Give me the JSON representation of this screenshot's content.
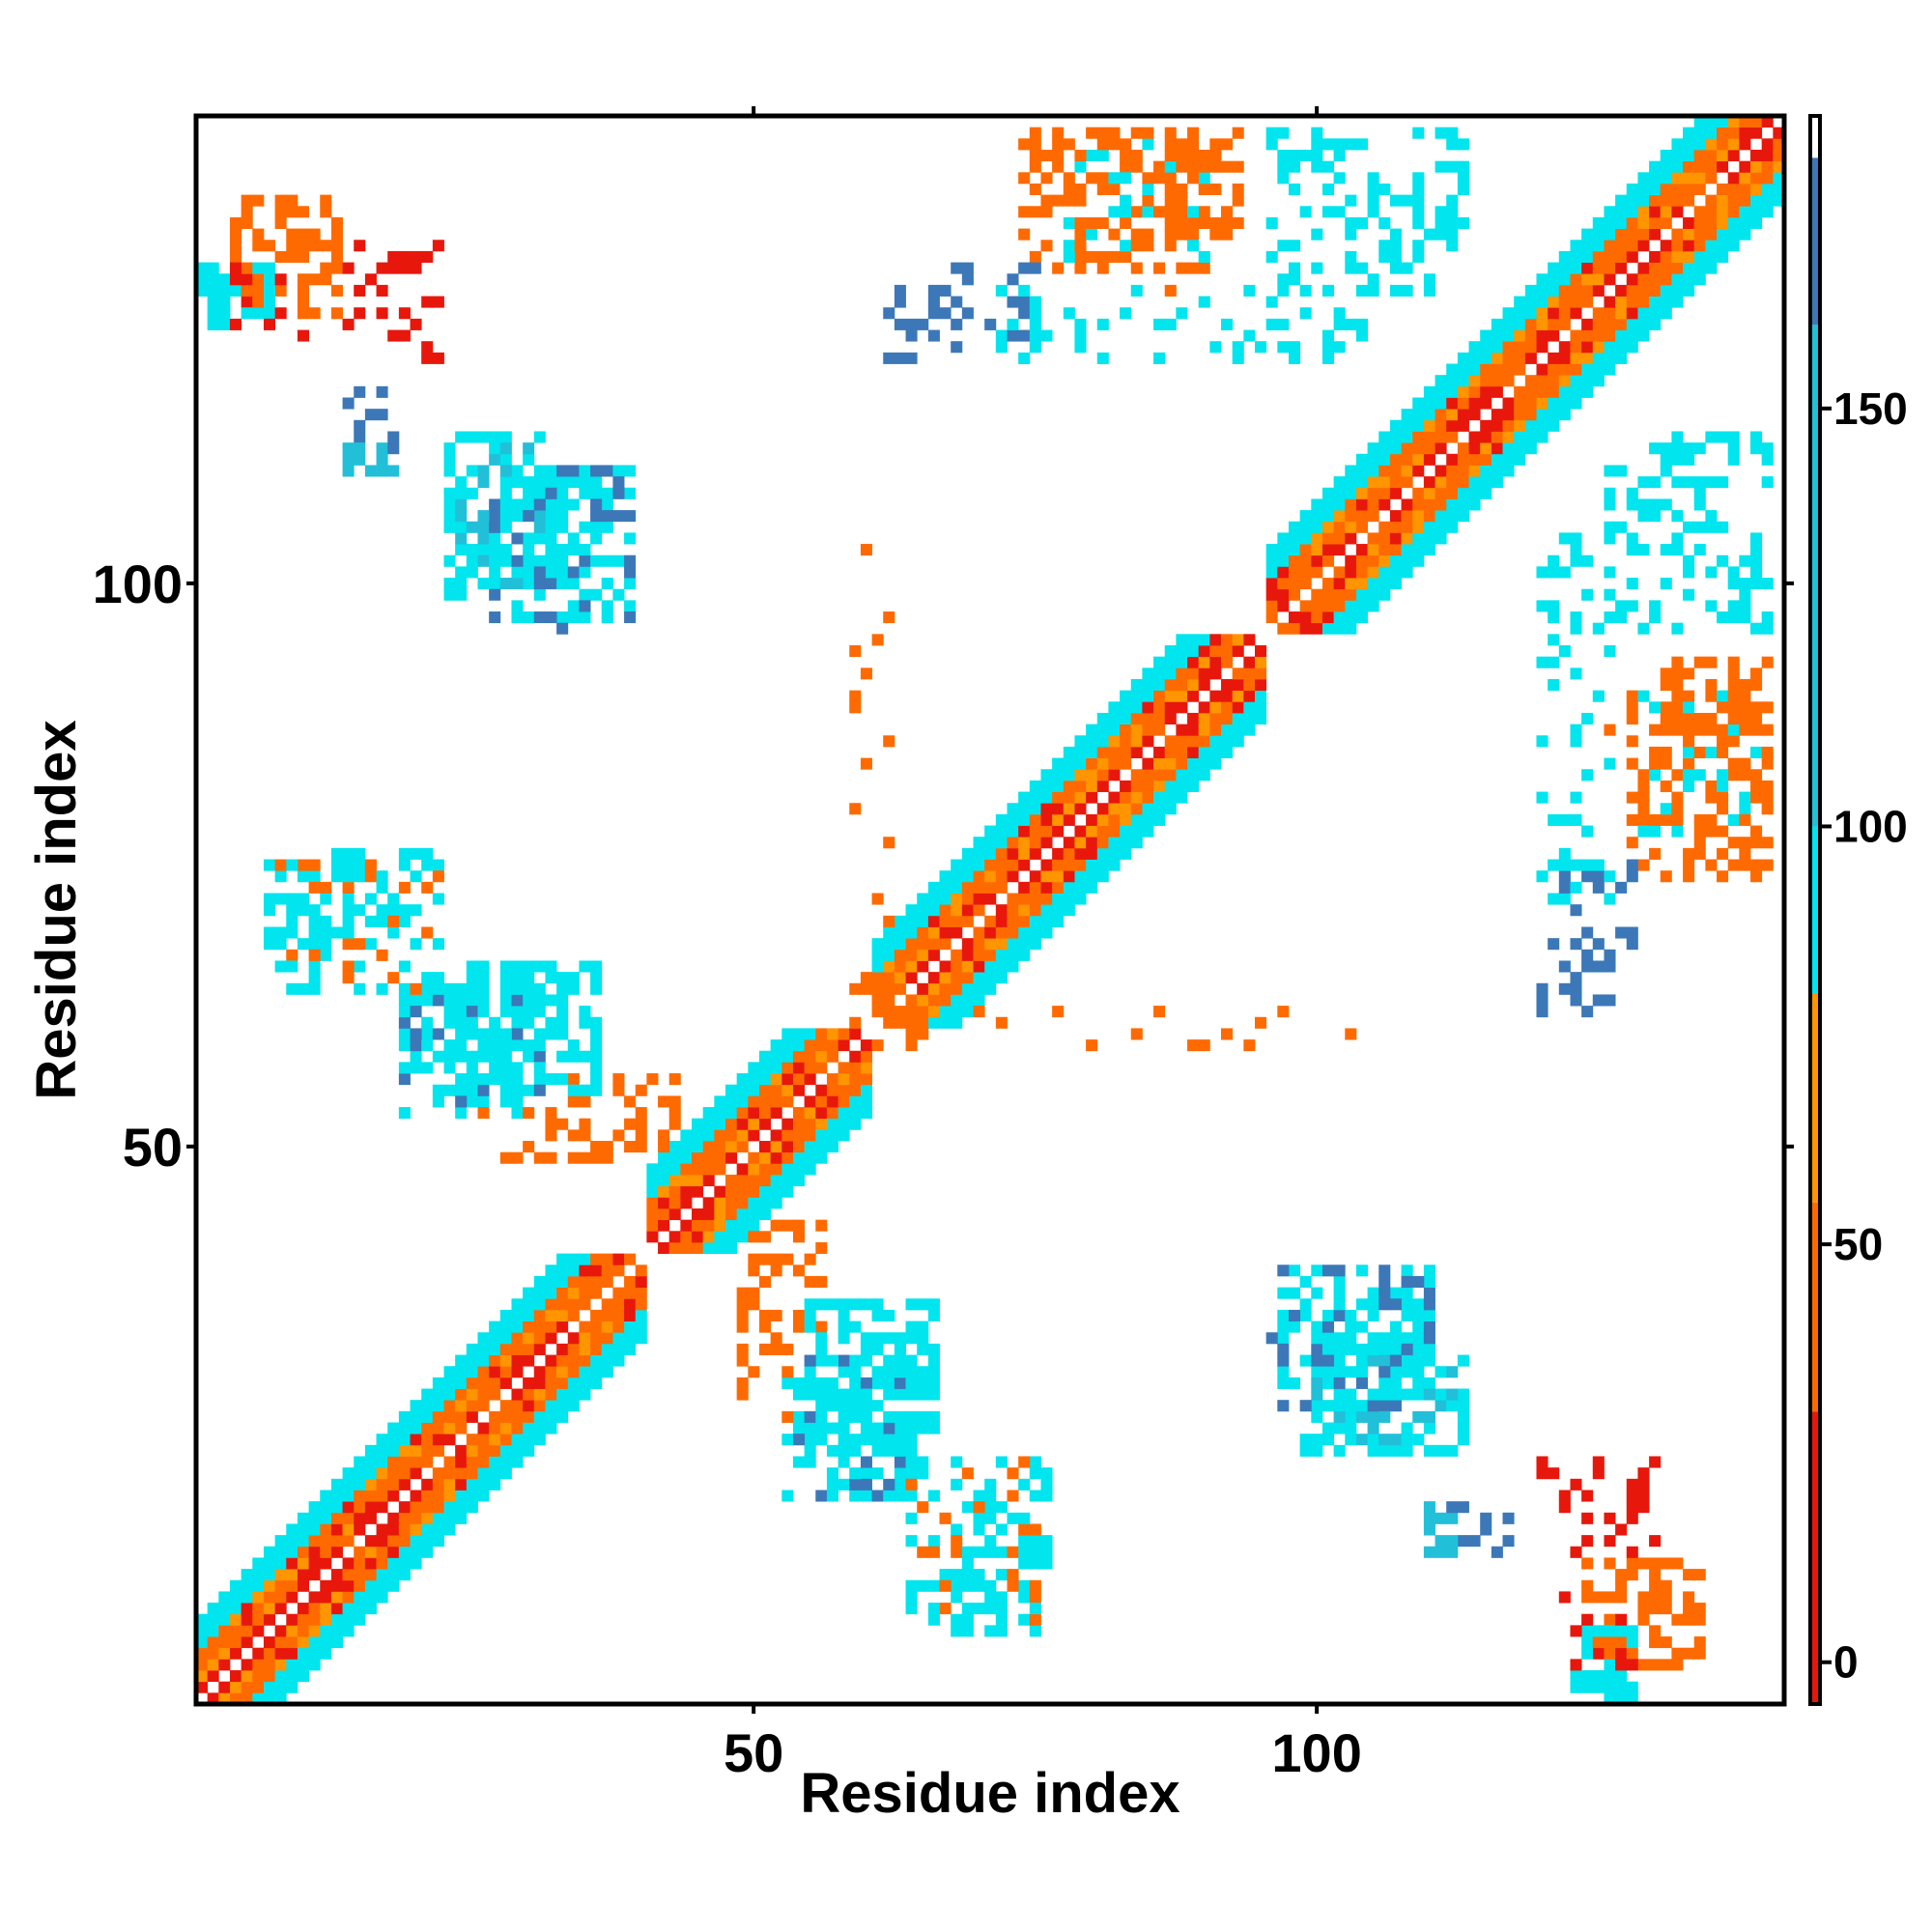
{
  "chart_data": {
    "type": "heatmap",
    "title": "",
    "xlabel": "Residue index",
    "ylabel": "Residue index",
    "n_residues": 141,
    "xlim": [
      1,
      141
    ],
    "ylim": [
      1,
      141
    ],
    "x_ticks": [
      50,
      100
    ],
    "y_ticks": [
      50,
      100
    ],
    "colorbar": {
      "range": [
        -5,
        185
      ],
      "ticks": [
        0,
        50,
        100,
        150
      ],
      "segments": [
        {
          "from": -5,
          "to": 30,
          "color": "#e8170c"
        },
        {
          "from": 30,
          "to": 55,
          "color": "#ff6a00"
        },
        {
          "from": 55,
          "to": 80,
          "color": "#ff9500"
        },
        {
          "from": 80,
          "to": 100,
          "color": "#00e5ee"
        },
        {
          "from": 100,
          "to": 160,
          "color": "#22bfd9"
        },
        {
          "from": 160,
          "to": 180,
          "color": "#3c78b8"
        },
        {
          "from": 180,
          "to": 185,
          "color": "#ffffff"
        }
      ]
    },
    "diagonal_band": {
      "offsets": [
        {
          "d": 0,
          "value": null
        },
        {
          "d": 1,
          "value": 10
        },
        {
          "d": 2,
          "value": 42
        },
        {
          "d": 3,
          "value": 48
        },
        {
          "d": 4,
          "value": 40
        },
        {
          "d": 5,
          "value": 85
        },
        {
          "d": 6,
          "value": 90
        },
        {
          "d": 7,
          "value": 95
        }
      ],
      "segments": [
        [
          1,
          40
        ],
        [
          41,
          60
        ],
        [
          61,
          95
        ],
        [
          96,
          141
        ]
      ]
    },
    "blocks": [
      {
        "i": [
          4,
          13
        ],
        "j": [
          124,
          134
        ],
        "value": 48,
        "density": 0.5
      },
      {
        "i": [
          14,
          22
        ],
        "j": [
          120,
          130
        ],
        "value": 20,
        "density": 0.25
      },
      {
        "i": [
          2,
          7
        ],
        "j": [
          124,
          128
        ],
        "value": 90,
        "density": 0.45
      },
      {
        "i": [
          23,
          33
        ],
        "j": [
          99,
          113
        ],
        "value": 90,
        "density": 0.45
      },
      {
        "i": [
          24,
          31
        ],
        "j": [
          100,
          112
        ],
        "value": 110,
        "density": 0.25
      },
      {
        "i": [
          14,
          18
        ],
        "j": [
          112,
          117
        ],
        "value": 170,
        "density": 0.35
      },
      {
        "i": [
          7,
          15
        ],
        "j": [
          67,
          75
        ],
        "value": 92,
        "density": 0.4
      },
      {
        "i": [
          19,
          31
        ],
        "j": [
          53,
          64
        ],
        "value": 95,
        "density": 0.5
      },
      {
        "i": [
          19,
          31
        ],
        "j": [
          53,
          64
        ],
        "value": 170,
        "density": 0.15
      },
      {
        "i": [
          26,
          33
        ],
        "j": [
          49,
          53
        ],
        "value": 50,
        "density": 0.2
      },
      {
        "i": [
          49,
          56
        ],
        "j": [
          34,
          43
        ],
        "value": 45,
        "density": 0.3
      },
      {
        "i": [
          55,
          66
        ],
        "j": [
          24,
          36
        ],
        "value": 95,
        "density": 0.5
      },
      {
        "i": [
          64,
          76
        ],
        "j": [
          8,
          22
        ],
        "value": 90,
        "density": 0.35
      },
      {
        "i": [
          64,
          76
        ],
        "j": [
          8,
          22
        ],
        "value": 45,
        "density": 0.12
      },
      {
        "i": [
          74,
          90
        ],
        "j": [
          128,
          140
        ],
        "value": 40,
        "density": 0.45
      },
      {
        "i": [
          78,
          90
        ],
        "j": [
          129,
          140
        ],
        "value": 88,
        "density": 0.15
      },
      {
        "i": [
          66,
          75
        ],
        "j": [
          121,
          128
        ],
        "value": 170,
        "density": 0.2
      },
      {
        "i": [
          96,
          113
        ],
        "j": [
          126,
          140
        ],
        "value": 90,
        "density": 0.3
      },
      {
        "i": [
          97,
          110
        ],
        "j": [
          27,
          39
        ],
        "value": 95,
        "density": 0.45
      },
      {
        "i": [
          96,
          110
        ],
        "j": [
          27,
          39
        ],
        "value": 165,
        "density": 0.2
      },
      {
        "i": [
          110,
          112
        ],
        "j": [
          14,
          18
        ],
        "value": 150,
        "density": 0.5
      },
      {
        "i": [
          120,
          126
        ],
        "j": [
          72,
          104
        ],
        "value": 92,
        "density": 0.3
      },
      {
        "i": [
          120,
          126
        ],
        "j": [
          62,
          66
        ],
        "value": 170,
        "density": 0.35
      },
      {
        "i": [
          131,
          140
        ],
        "j": [
          87,
          93
        ],
        "value": 42,
        "density": 0.5
      },
      {
        "i": [
          126,
          141
        ],
        "j": [
          77,
          90
        ],
        "value": 45,
        "density": 0.1
      },
      {
        "i": [
          122,
          128
        ],
        "j": [
          3,
          10
        ],
        "value": 25,
        "density": 0.35
      },
      {
        "i": [
          123,
          128
        ],
        "j": [
          1,
          3
        ],
        "value": 95,
        "density": 0.6
      },
      {
        "i": [
          59,
          62
        ],
        "j": [
          57,
          103
        ],
        "value": 44,
        "density": 0.1
      }
    ]
  }
}
